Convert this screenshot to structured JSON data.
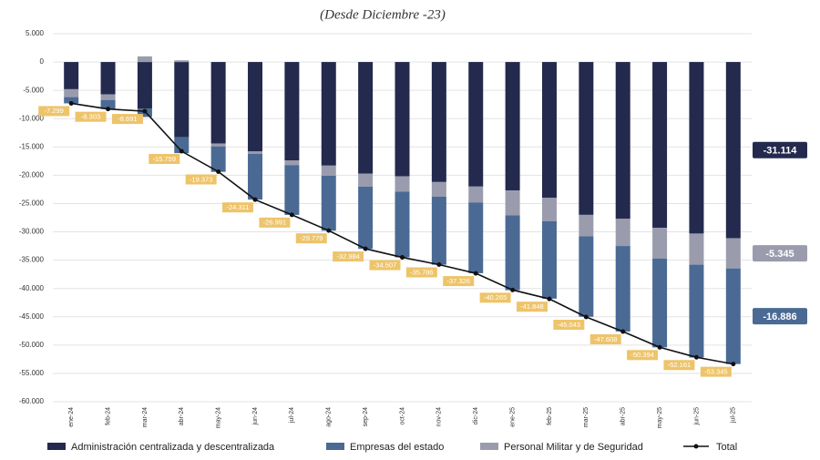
{
  "chart_data": {
    "type": "stacked_bar_line",
    "title": "(Desde Diciembre -23)",
    "categories": [
      "ene-24",
      "feb-24",
      "mar-24",
      "abr-24",
      "may-24",
      "jun-24",
      "jul-24",
      "ago-24",
      "sep-24",
      "oct-24",
      "nov-24",
      "dic-24",
      "ene-25",
      "feb-25",
      "mar-25",
      "abr-25",
      "may-25",
      "jun-25",
      "jul-25"
    ],
    "series": [
      {
        "name": "Administración centralizada y descentralizada",
        "color": "#232a4e",
        "values": [
          -4800,
          -5700,
          -8200,
          -13300,
          -14400,
          -15800,
          -17400,
          -18300,
          -19700,
          -20200,
          -21200,
          -22000,
          -22700,
          -24000,
          -27000,
          -27700,
          -29300,
          -30300,
          -31114
        ],
        "end_label": "-31.114"
      },
      {
        "name": "Personal Militar y de Seguridad",
        "color": "#9a9cad",
        "values": [
          -1400,
          -1000,
          1000,
          300,
          -500,
          -400,
          -800,
          -1800,
          -2300,
          -2700,
          -2600,
          -2800,
          -4400,
          -4100,
          -3800,
          -4800,
          -5400,
          -5500,
          -5345
        ],
        "end_label": "-5.345"
      },
      {
        "name": "Empresas del estado",
        "color": "#4a6a94",
        "values": [
          -1099,
          -1600,
          -1500,
          -2800,
          -4500,
          -8100,
          -8800,
          -9700,
          -11000,
          -11600,
          -12000,
          -12500,
          -13200,
          -13700,
          -14200,
          -15100,
          -15700,
          -16400,
          -16886
        ],
        "end_label": "-16.886"
      },
      {
        "name": "Total",
        "color": "#111111",
        "type": "line",
        "values": [
          -7299,
          -8303,
          -8691,
          -15759,
          -19373,
          -24311,
          -26991,
          -29779,
          -32984,
          -34507,
          -35786,
          -37326,
          -40265,
          -41848,
          -45043,
          -47608,
          -50394,
          -52161,
          -53345
        ],
        "value_labels": [
          "-7.299",
          "-8.303",
          "-8.691",
          "-15.759",
          "-19.373",
          "-24.311",
          "-26.991",
          "-29.779",
          "-32.984",
          "-34.507",
          "-35.786",
          "-37.326",
          "-40.265",
          "-41.848",
          "-45.043",
          "-47.608",
          "-50.394",
          "-52.161",
          "-53.345"
        ],
        "label_color": "#eec46a"
      }
    ],
    "legend_order": [
      0,
      2,
      1,
      3
    ],
    "ylim": [
      -60000,
      5000
    ],
    "yticks": [
      {
        "value": 5000,
        "label": "5.000"
      },
      0,
      {
        "value": -5000,
        "label": "-5.000"
      },
      {
        "value": -10000,
        "label": "-10.000"
      },
      {
        "value": -15000,
        "label": "-15.000"
      },
      {
        "value": -20000,
        "label": "-20.000"
      },
      {
        "value": -25000,
        "label": "-25.000"
      },
      {
        "value": -30000,
        "label": "-30.000"
      },
      {
        "value": -35000,
        "label": "-35.000"
      },
      {
        "value": -40000,
        "label": "-40.000"
      },
      {
        "value": -45000,
        "label": "-45.000"
      },
      {
        "value": -50000,
        "label": "-50.000"
      },
      {
        "value": -55000,
        "label": "-55.000"
      },
      {
        "value": -60000,
        "label": "-60.000"
      }
    ],
    "grid": true
  }
}
